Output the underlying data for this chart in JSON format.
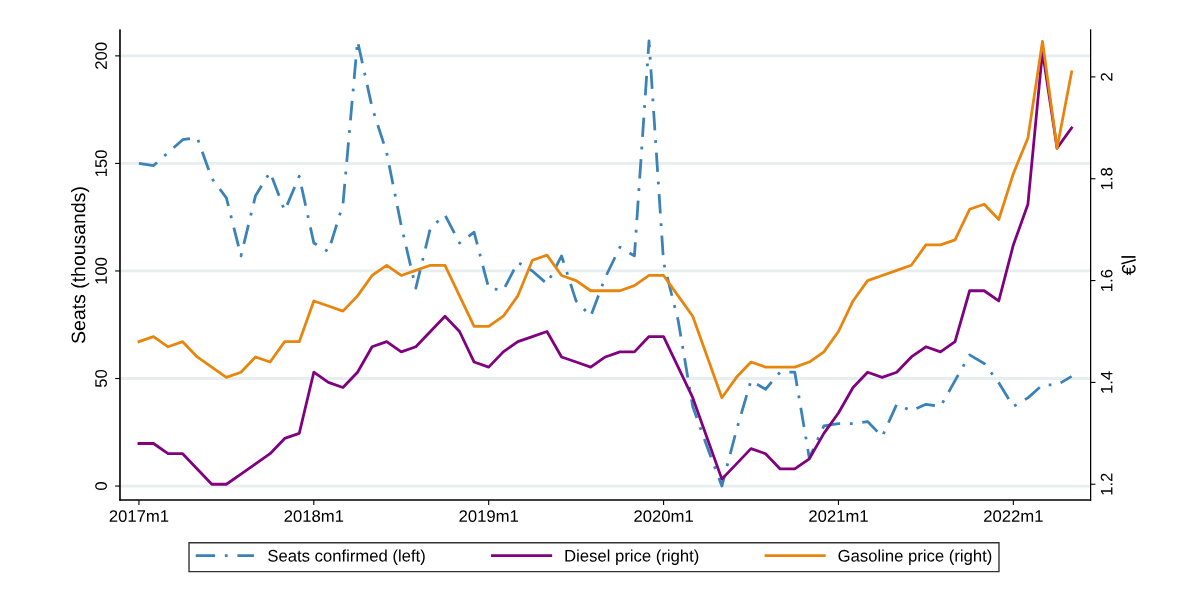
{
  "chart_data": {
    "type": "line",
    "categories": [
      "2017m1",
      null,
      null,
      null,
      null,
      null,
      null,
      null,
      null,
      null,
      null,
      null,
      "2018m1",
      null,
      null,
      null,
      null,
      null,
      null,
      null,
      null,
      null,
      null,
      null,
      "2019m1",
      null,
      null,
      null,
      null,
      null,
      null,
      null,
      null,
      null,
      null,
      null,
      "2020m1",
      null,
      null,
      null,
      null,
      null,
      null,
      null,
      null,
      null,
      null,
      null,
      "2021m1",
      null,
      null,
      null,
      null,
      null,
      null,
      null,
      null,
      null,
      null,
      null,
      "2022m1",
      null,
      null,
      null,
      null
    ],
    "series": [
      {
        "name": "Seats confirmed (left)",
        "color": "#3a82b8",
        "line_style": "dashed",
        "axis": "y",
        "values": [
          150,
          149,
          155,
          161,
          162,
          143,
          134,
          107,
          135,
          146,
          128,
          144,
          113,
          109,
          131,
          207,
          176,
          155,
          121,
          92,
          120,
          126,
          113,
          118,
          92,
          91,
          104,
          100,
          94,
          107,
          86,
          79,
          97,
          111,
          107,
          207,
          104,
          77,
          37,
          18,
          0,
          26,
          49,
          45,
          53,
          53,
          13,
          28,
          29,
          29,
          30,
          23,
          38,
          35,
          38,
          37,
          49,
          61,
          57,
          48,
          37,
          41,
          47,
          47,
          51
        ]
      },
      {
        "name": "Diesel price (right)",
        "color": "#800080",
        "line_style": "solid",
        "axis": "y2",
        "values": [
          1.28,
          1.28,
          1.26,
          1.26,
          1.23,
          1.2,
          1.2,
          1.22,
          1.24,
          1.26,
          1.29,
          1.3,
          1.42,
          1.4,
          1.39,
          1.42,
          1.47,
          1.48,
          1.46,
          1.47,
          1.5,
          1.53,
          1.5,
          1.44,
          1.43,
          1.46,
          1.48,
          1.49,
          1.5,
          1.45,
          1.44,
          1.43,
          1.45,
          1.46,
          1.46,
          1.49,
          1.49,
          1.43,
          1.37,
          1.29,
          1.21,
          1.24,
          1.27,
          1.26,
          1.23,
          1.23,
          1.25,
          1.3,
          1.34,
          1.39,
          1.42,
          1.41,
          1.42,
          1.45,
          1.47,
          1.46,
          1.48,
          1.58,
          1.58,
          1.56,
          1.67,
          1.75,
          2.05,
          1.86,
          1.9
        ]
      },
      {
        "name": "Gasoline price (right)",
        "color": "#e8850c",
        "line_style": "solid",
        "axis": "y2",
        "values": [
          1.48,
          1.49,
          1.47,
          1.48,
          1.45,
          1.43,
          1.41,
          1.42,
          1.45,
          1.44,
          1.48,
          1.48,
          1.56,
          1.55,
          1.54,
          1.57,
          1.61,
          1.63,
          1.61,
          1.62,
          1.63,
          1.63,
          1.57,
          1.51,
          1.51,
          1.53,
          1.57,
          1.64,
          1.65,
          1.61,
          1.6,
          1.58,
          1.58,
          1.58,
          1.59,
          1.61,
          1.61,
          1.57,
          1.53,
          1.45,
          1.37,
          1.41,
          1.44,
          1.43,
          1.43,
          1.43,
          1.44,
          1.46,
          1.5,
          1.56,
          1.6,
          1.61,
          1.62,
          1.63,
          1.67,
          1.67,
          1.68,
          1.74,
          1.75,
          1.72,
          1.81,
          1.88,
          2.07,
          1.86,
          2.01
        ]
      }
    ],
    "ylabel": "Seats (thousands)",
    "y2label": "€\\l",
    "ylim": [
      -6.5,
      212
    ],
    "yticks": [
      0,
      50,
      100,
      150,
      200
    ],
    "y2lim": [
      1.169,
      2.092
    ],
    "y2ticks": [
      1.2,
      1.4,
      1.6,
      1.8,
      2
    ],
    "grid": "y",
    "legend": "bottom",
    "marker": "none"
  }
}
